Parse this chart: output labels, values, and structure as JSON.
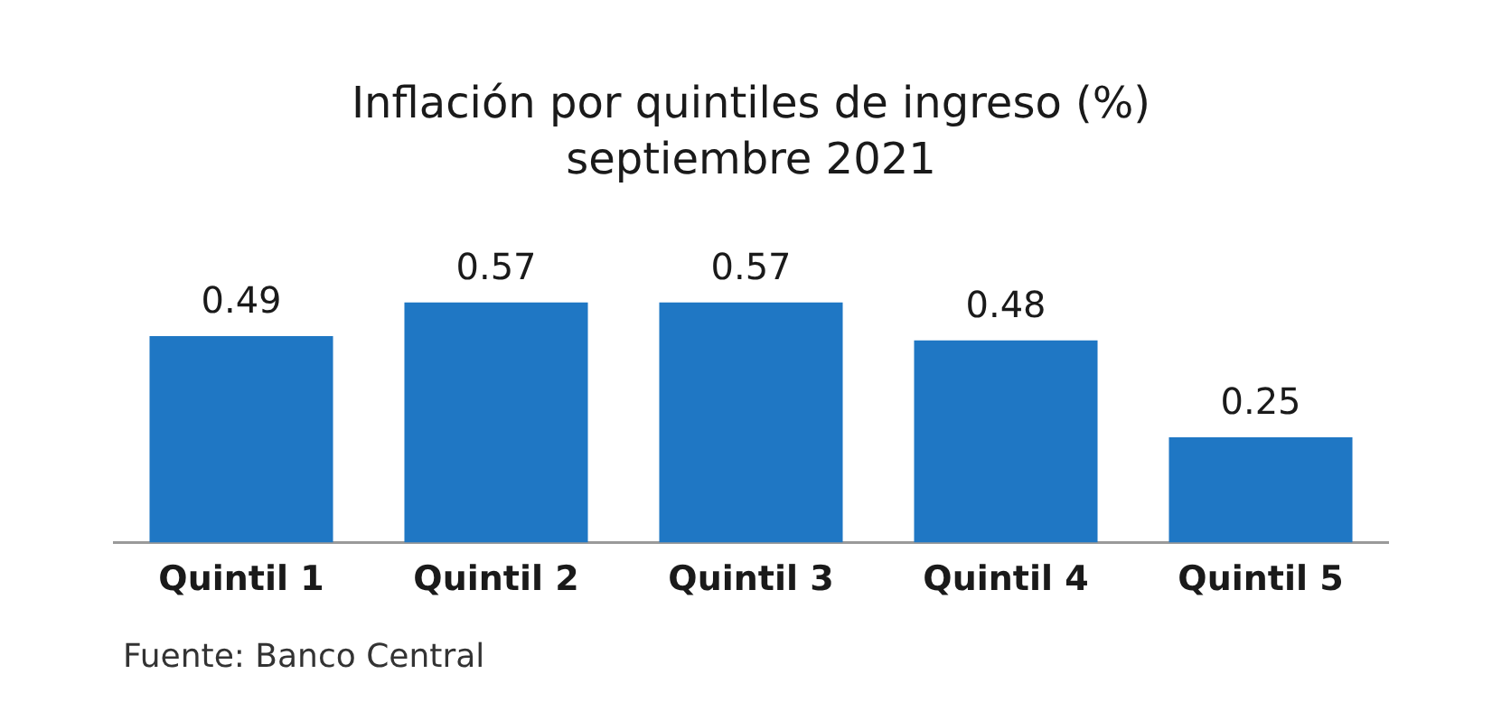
{
  "chart_data": {
    "type": "bar",
    "title": "Inflación por quintiles de ingreso (%)",
    "subtitle": "septiembre 2021",
    "categories": [
      "Quintil 1",
      "Quintil 2",
      "Quintil 3",
      "Quintil 4",
      "Quintil 5"
    ],
    "values": [
      0.49,
      0.57,
      0.57,
      0.48,
      0.25
    ],
    "color": "#1f77c4",
    "tick_labels": "x",
    "data_labels": true,
    "grid": false,
    "legend": false,
    "annotations": [
      "Fuente: Banco Central"
    ]
  }
}
